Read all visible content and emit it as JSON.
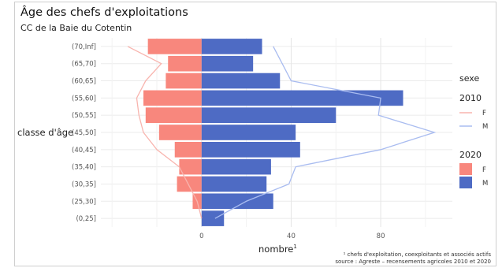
{
  "chart_data": {
    "type": "bar",
    "title": "Âge des chefs d'exploitations",
    "subtitle": "CC de la Baie du Cotentin",
    "xlabel": "nombre",
    "xlabel_superscript": "1",
    "ylabel": "classe d'âge",
    "categories": [
      "(0,25]",
      "(25,30]",
      "(30,35]",
      "(35,40]",
      "(40,45]",
      "(45,50]",
      "(50,55]",
      "(55,60]",
      "(60,65]",
      "(65,70]",
      "(70,Inf]"
    ],
    "x_ticks": [
      0,
      40,
      80
    ],
    "xlim": [
      -45,
      112
    ],
    "grid": true,
    "series": [
      {
        "name": "F",
        "year": "2020",
        "type": "bar",
        "color": "#F8877D",
        "values": [
          0,
          4,
          11,
          10,
          12,
          19,
          25,
          26,
          16,
          15,
          24
        ]
      },
      {
        "name": "M",
        "year": "2020",
        "type": "bar",
        "color": "#4E6BC4",
        "values": [
          10,
          32,
          29,
          31,
          44,
          42,
          60,
          90,
          35,
          23,
          27
        ]
      },
      {
        "name": "F",
        "year": "2010",
        "type": "line",
        "color": "#F8B4AE",
        "values": [
          0,
          2,
          6,
          10,
          20,
          26,
          28,
          29,
          25,
          18,
          33
        ]
      },
      {
        "name": "M",
        "year": "2010",
        "type": "line",
        "color": "#A9BCF0",
        "values": [
          6,
          20,
          39,
          42,
          80,
          104,
          79,
          80,
          40,
          36,
          32
        ]
      }
    ],
    "legend": {
      "title": "sexe",
      "position": "right",
      "groups": [
        {
          "title": "2010",
          "items": [
            "F",
            "M"
          ]
        },
        {
          "title": "2020",
          "items": [
            "F",
            "M"
          ]
        }
      ]
    },
    "caption_line1": "¹ chefs d'exploitation, coexploitants et associés actifs",
    "caption_line2": "source : Agreste – recensements agricoles 2010 et 2020"
  }
}
